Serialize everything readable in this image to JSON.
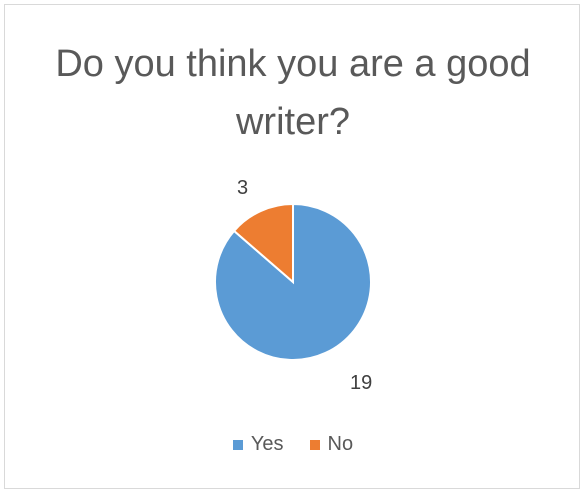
{
  "chart_data": {
    "type": "pie",
    "title": "Do you think you are a good writer?",
    "categories": [
      "Yes",
      "No"
    ],
    "values": [
      19,
      3
    ],
    "colors": [
      "#5b9bd5",
      "#ed7d31"
    ],
    "data_labels": [
      "19",
      "3"
    ],
    "legend_position": "bottom",
    "start_angle_deg": 0,
    "direction": "clockwise"
  }
}
